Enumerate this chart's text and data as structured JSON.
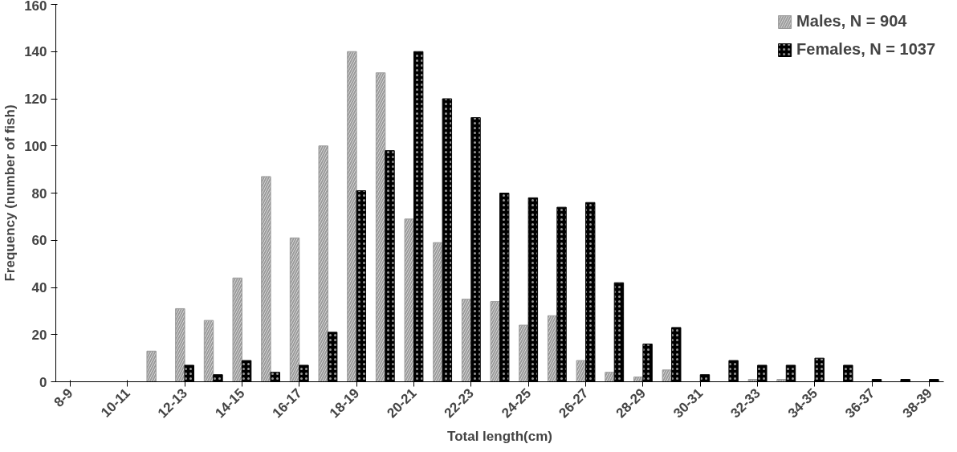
{
  "chart_data": {
    "type": "bar",
    "xlabel": "Total length(cm)",
    "ylabel": "Frequency (number of fish)",
    "categories": [
      "8-9",
      null,
      "10-11",
      null,
      "12-13",
      null,
      "14-15",
      null,
      "16-17",
      null,
      "18-19",
      null,
      "20-21",
      null,
      "22-23",
      null,
      "24-25",
      null,
      "26-27",
      null,
      "28-29",
      null,
      "30-31",
      null,
      "32-33",
      null,
      "34-35",
      null,
      "36-37",
      null,
      "38-39"
    ],
    "series": [
      {
        "name": "Males, N = 904",
        "color": "#9a9a9a",
        "values": [
          0,
          0,
          0,
          13,
          31,
          26,
          44,
          87,
          61,
          100,
          140,
          131,
          69,
          59,
          35,
          34,
          24,
          28,
          9,
          4,
          2,
          5,
          0,
          0,
          1,
          1,
          0,
          0,
          0,
          0,
          0
        ]
      },
      {
        "name": "Females, N = 1037",
        "color": "#000000",
        "values": [
          0,
          0,
          0,
          0,
          7,
          3,
          9,
          4,
          7,
          21,
          81,
          98,
          140,
          120,
          112,
          80,
          78,
          74,
          76,
          42,
          16,
          23,
          3,
          9,
          7,
          7,
          10,
          7,
          1,
          1,
          1
        ]
      }
    ],
    "ylim": [
      0,
      160
    ],
    "yticks": [
      0,
      20,
      40,
      60,
      80,
      100,
      120,
      140,
      160
    ],
    "grid": false,
    "legend": "top right"
  }
}
